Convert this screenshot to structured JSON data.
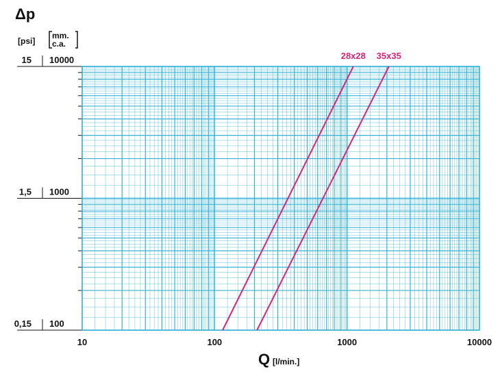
{
  "chart_data": {
    "type": "line",
    "y_title": "Δp",
    "y2_label": "[psi]",
    "y_label": [
      "mm.",
      "c.a."
    ],
    "x_label": "Q",
    "x_unit": "[l/min.]",
    "log_x": true,
    "log_y": true,
    "grid": true,
    "xlim": [
      10,
      10000
    ],
    "xticks": [
      10,
      100,
      1000,
      10000
    ],
    "ylim": [
      100,
      10000
    ],
    "yticks": [
      100,
      1000,
      10000
    ],
    "y2lim": [
      0.15,
      15
    ],
    "y2ticks": [
      {
        "value": 0.15,
        "label": "0,15"
      },
      {
        "value": 1.5,
        "label": "1,5"
      },
      15
    ],
    "series": [
      {
        "name": "28x28",
        "color": "#d6257a",
        "x": [
          115,
          1115
        ],
        "values": [
          100,
          10000
        ]
      },
      {
        "name": "35x35",
        "color": "#d6257a",
        "x": [
          209,
          2070
        ],
        "values": [
          100,
          10000
        ]
      }
    ]
  }
}
